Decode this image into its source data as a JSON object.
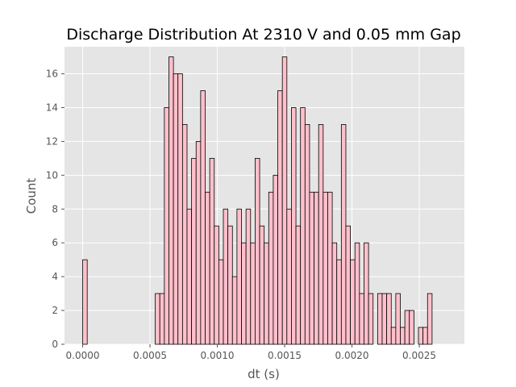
{
  "chart_data": {
    "type": "bar",
    "title": "Discharge Distribution At 2310 V and 0.05 mm Gap",
    "xlabel": "dt (s)",
    "ylabel": "Count",
    "xlim": [
      -0.000135,
      0.002835
    ],
    "ylim": [
      0,
      17.6
    ],
    "xticks": [
      0.0,
      0.0005,
      0.001,
      0.0015,
      0.002,
      0.0025
    ],
    "xtick_labels": [
      "0.0000",
      "0.0005",
      "0.0010",
      "0.0015",
      "0.0020",
      "0.0025"
    ],
    "yticks": [
      0,
      2,
      4,
      6,
      8,
      10,
      12,
      14,
      16
    ],
    "ytick_labels": [
      "0",
      "2",
      "4",
      "6",
      "8",
      "10",
      "12",
      "14",
      "16"
    ],
    "grid": true,
    "bin_start": 0.0,
    "bin_width": 3.37e-05,
    "bar_fill": "#ffc0cb",
    "bar_edge": "#000000",
    "plot_background": "#e5e5e5",
    "grid_color": "#ffffff",
    "values": [
      5,
      0,
      0,
      0,
      0,
      0,
      0,
      0,
      0,
      0,
      0,
      0,
      0,
      0,
      0,
      0,
      3,
      3,
      14,
      17,
      16,
      16,
      13,
      8,
      11,
      12,
      15,
      9,
      11,
      7,
      5,
      8,
      7,
      4,
      8,
      6,
      8,
      6,
      11,
      7,
      6,
      9,
      10,
      15,
      17,
      8,
      14,
      7,
      14,
      13,
      9,
      9,
      13,
      9,
      9,
      6,
      5,
      13,
      7,
      5,
      6,
      3,
      6,
      3,
      0,
      3,
      3,
      3,
      1,
      3,
      1,
      2,
      2,
      0,
      1,
      1,
      3
    ]
  }
}
